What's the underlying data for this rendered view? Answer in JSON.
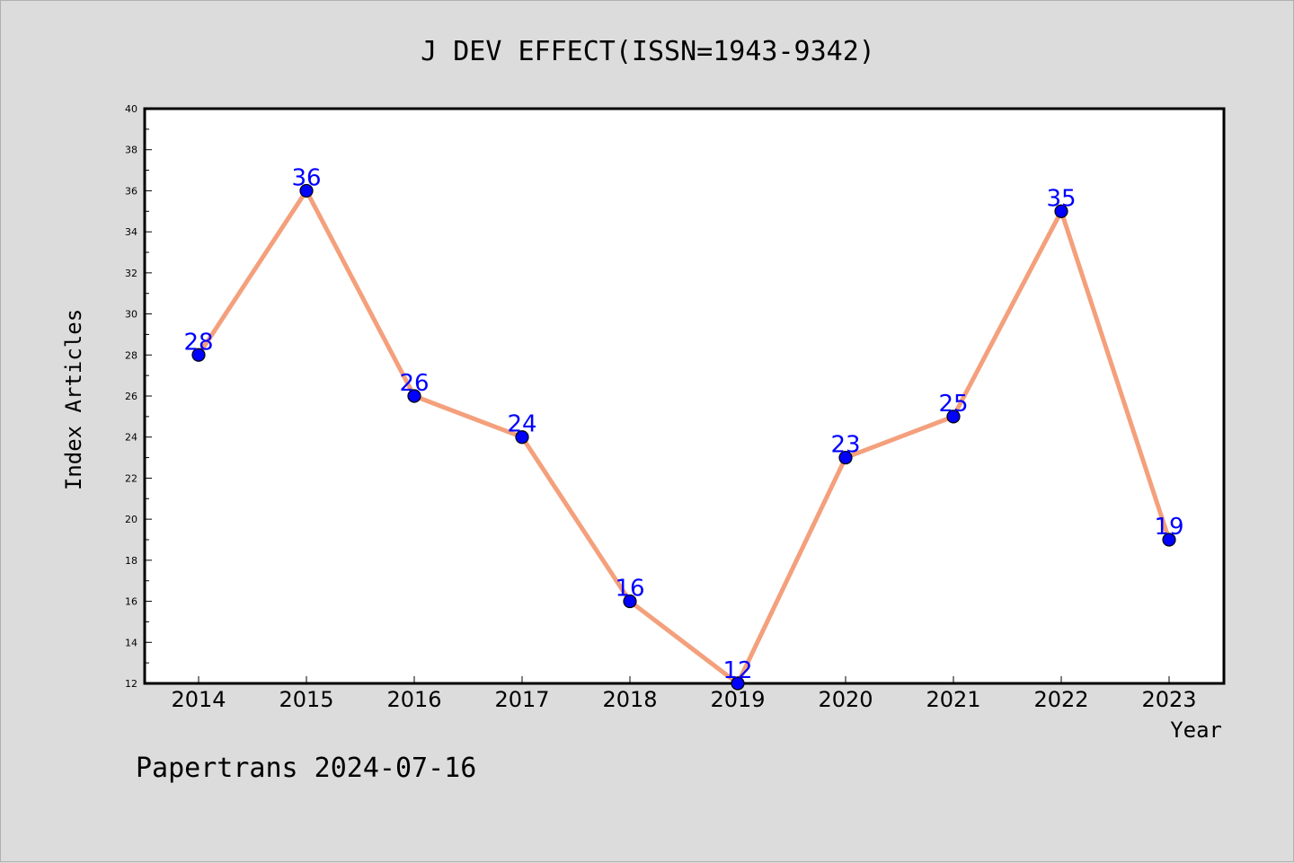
{
  "footer": "Papertrans 2024-07-16",
  "chart_data": {
    "type": "line",
    "title": "J DEV EFFECT(ISSN=1943-9342)",
    "xlabel": "Year",
    "ylabel": "Index Articles",
    "categories": [
      "2014",
      "2015",
      "2016",
      "2017",
      "2018",
      "2019",
      "2020",
      "2021",
      "2022",
      "2023"
    ],
    "values": [
      28,
      36,
      26,
      24,
      16,
      12,
      23,
      25,
      35,
      19
    ],
    "ylim": [
      12,
      40
    ],
    "yticks": [
      12,
      14,
      16,
      18,
      20,
      22,
      24,
      26,
      28,
      30,
      32,
      34,
      36,
      38,
      40
    ],
    "grid": false,
    "data_labels": true,
    "colors": {
      "line": "#f4a07c",
      "marker": "#0000ff",
      "marker_edge": "#000000",
      "label": "#0000ff",
      "background": "#dcdcdc",
      "plot_background": "#ffffff"
    }
  }
}
